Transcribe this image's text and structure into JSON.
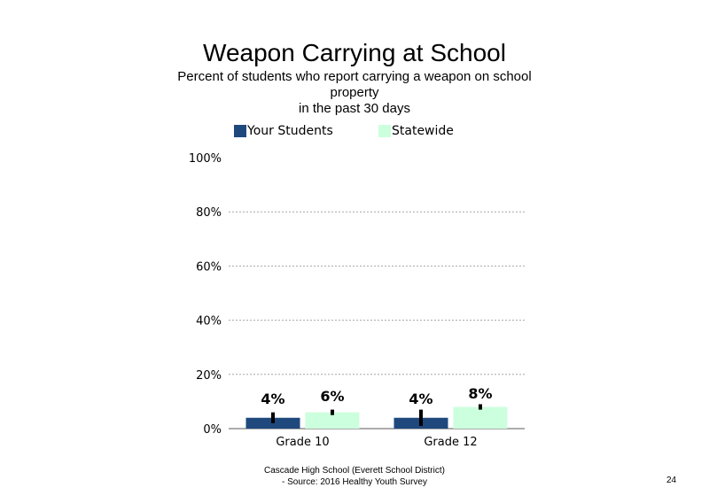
{
  "title": "Weapon Carrying at School",
  "subtitle_lines": [
    "Percent of students  who report carrying a weapon  on school",
    "property",
    "in the past 30 days"
  ],
  "colors": {
    "your_students": "#1f497d",
    "statewide": "#ccffdd",
    "grid": "#a6a6a6",
    "axis": "#595959"
  },
  "chart_data": {
    "type": "bar",
    "title": "Weapon Carrying at School",
    "subtitle": "Percent of students who report carrying a weapon on school property in the past 30 days",
    "categories": [
      "Grade 10",
      "Grade 12"
    ],
    "series": [
      {
        "name": "Your Students",
        "values": [
          4,
          4
        ],
        "labels": [
          "4%",
          "4%"
        ],
        "error": [
          [
            2,
            6
          ],
          [
            1,
            7
          ]
        ]
      },
      {
        "name": "Statewide",
        "values": [
          6,
          8
        ],
        "labels": [
          "6%",
          "8%"
        ],
        "error": [
          [
            5,
            7
          ],
          [
            7,
            9
          ]
        ]
      }
    ],
    "ylim": [
      0,
      100
    ],
    "yticks": [
      "0%",
      "20%",
      "40%",
      "60%",
      "80%",
      "100%"
    ],
    "grid": true,
    "legend_position": "top"
  },
  "footer": {
    "line1": "Cascade High School (Everett School District)",
    "line2": "- Source: 2016 Healthy  Youth Survey"
  },
  "page_number": "24"
}
